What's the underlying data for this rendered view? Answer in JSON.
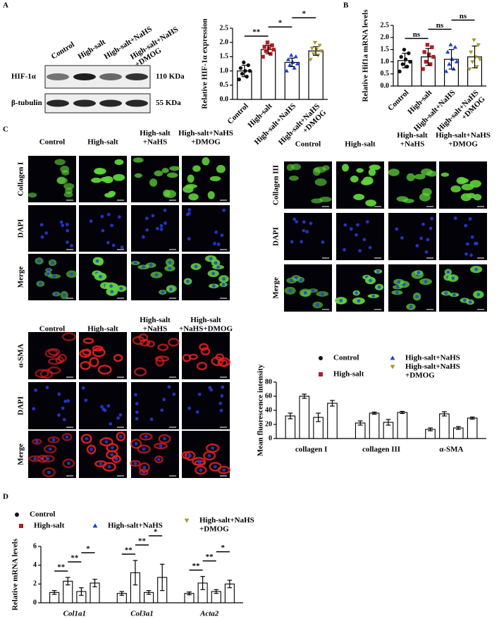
{
  "panel_labels": [
    "A",
    "B",
    "C",
    "D"
  ],
  "western_blot": {
    "lanes": [
      "Control",
      "High-salt",
      "High-salt+NaHS",
      "High-salt+NaHS\n+DMOG"
    ],
    "rows": [
      {
        "protein": "HIF-1α",
        "size": "110 KDa"
      },
      {
        "protein": "β-tubulin",
        "size": "55 KDa"
      }
    ]
  },
  "micrographs": [
    {
      "columns": [
        "Control",
        "High-salt",
        "High-salt\n+NaHS",
        "High-salt+NaHS\n+DMOG"
      ],
      "rows": [
        "Collagen I",
        "DAPI",
        "Merge"
      ]
    },
    {
      "columns": [
        "Control",
        "High-salt",
        "High-salt\n+NaHS",
        "High-salt+NaHS\n+DMOG"
      ],
      "rows": [
        "Collagen III",
        "DAPI",
        "Merge"
      ]
    },
    {
      "columns": [
        "Control",
        "High-salt",
        "High-salt\n+NaHS",
        "High-salt\n+NaHS+DMOG"
      ],
      "rows": [
        "α-SMA",
        "DAPI",
        "Merge"
      ]
    }
  ],
  "chart_data": [
    {
      "type": "bar",
      "y_label": "Relative HIF-1α expression",
      "categories": [
        "Control",
        "High-salt",
        "High-salt+NaHS",
        "High-salt+NaHS\n+DMOG"
      ],
      "values": [
        1.0,
        1.75,
        1.3,
        1.7
      ],
      "errors": [
        0.2,
        0.15,
        0.15,
        0.15
      ],
      "colors": [
        "#111111",
        "#b01e23",
        "#1c3fd6",
        "#a39a2b"
      ],
      "markers": [
        "circle",
        "square",
        "triangle",
        "triangle-down"
      ],
      "points": [
        [
          0.7,
          0.8,
          0.9,
          1.0,
          1.0,
          1.1,
          1.2,
          1.3
        ],
        [
          1.5,
          1.6,
          1.7,
          1.75,
          1.8,
          1.85,
          1.9,
          2.0
        ],
        [
          1.0,
          1.1,
          1.2,
          1.25,
          1.3,
          1.4,
          1.5,
          1.55
        ],
        [
          1.4,
          1.55,
          1.6,
          1.7,
          1.75,
          1.8,
          1.9,
          2.0
        ]
      ],
      "ylim": [
        0,
        2.5
      ],
      "yticks": [
        {
          "value": 0,
          "label": "0.0"
        },
        0.5,
        {
          "value": 1,
          "label": "1.0"
        },
        1.5,
        {
          "value": 2,
          "label": "2.0"
        },
        2.5
      ],
      "annotations": [
        {
          "label": "**",
          "from": 0,
          "to": 1
        },
        {
          "label": "*",
          "from": 1,
          "to": 2
        },
        {
          "label": "*",
          "from": 2,
          "to": 3
        }
      ]
    },
    {
      "type": "bar",
      "y_label": "Relative Hif1a mRNA levels",
      "categories": [
        "Control",
        "High-salt",
        "High-salt+NaHS",
        "High-salt+NaHS\n+DMOG"
      ],
      "values": [
        1.05,
        1.2,
        1.1,
        1.2
      ],
      "errors": [
        0.3,
        0.35,
        0.4,
        0.45
      ],
      "colors": [
        "#111111",
        "#b01e23",
        "#1c3fd6",
        "#a39a2b"
      ],
      "markers": [
        "circle",
        "square",
        "triangle",
        "triangle-down"
      ],
      "points": [
        [
          0.6,
          0.8,
          0.9,
          1.0,
          1.1,
          1.2,
          1.35,
          1.5
        ],
        [
          0.7,
          0.9,
          1.0,
          1.2,
          1.3,
          1.4,
          1.6,
          1.7
        ],
        [
          0.6,
          0.7,
          0.9,
          1.0,
          1.1,
          1.4,
          1.6,
          1.7
        ],
        [
          0.7,
          0.8,
          1.0,
          1.1,
          1.2,
          1.4,
          1.7,
          1.9
        ]
      ],
      "ylim": [
        0,
        2.5
      ],
      "yticks": [
        {
          "value": 0,
          "label": "0.0"
        },
        0.5,
        {
          "value": 1,
          "label": "1.0"
        },
        1.5,
        {
          "value": 2,
          "label": "2.0"
        },
        2.5
      ],
      "annotations": [
        {
          "label": "ns",
          "from": 0,
          "to": 1
        },
        {
          "label": "ns",
          "from": 1,
          "to": 2
        },
        {
          "label": "ns",
          "from": 2,
          "to": 3
        }
      ]
    },
    {
      "type": "grouped_bar",
      "y_label": "Mean fluorescence intensity",
      "categories": [
        "collagen I",
        "collagen III",
        "α-SMA"
      ],
      "series": [
        {
          "name": "Control",
          "color": "#111111",
          "marker": "circle",
          "values": [
            32,
            22,
            13
          ],
          "errors": [
            4,
            3,
            2
          ]
        },
        {
          "name": "High-salt",
          "color": "#b01e23",
          "marker": "square",
          "values": [
            60,
            36,
            35
          ],
          "errors": [
            3,
            1.5,
            3
          ]
        },
        {
          "name": "High-salt+NaHS",
          "color": "#1c3fd6",
          "marker": "triangle",
          "values": [
            30,
            23,
            15
          ],
          "errors": [
            6,
            4,
            2
          ]
        },
        {
          "name": "High-salt+NaHS\n+DMOG",
          "color": "#a39a2b",
          "marker": "triangle-down",
          "values": [
            50,
            37,
            29
          ],
          "errors": [
            4,
            1.5,
            1.5
          ]
        }
      ],
      "ylim": [
        0,
        80
      ],
      "yticks": [
        0,
        20,
        40,
        60,
        80
      ]
    },
    {
      "type": "grouped_bar",
      "y_label": "Relative mRNA levels",
      "category_font_style": "italic",
      "categories": [
        "Col1a1",
        "Col3a1",
        "Acta2"
      ],
      "series": [
        {
          "name": "Control",
          "color": "#111111",
          "marker": "circle",
          "values": [
            1.1,
            1.0,
            1.0
          ],
          "errors": [
            0.2,
            0.2,
            0.15
          ]
        },
        {
          "name": "High-salt",
          "color": "#b01e23",
          "marker": "square",
          "values": [
            2.3,
            3.2,
            2.1
          ],
          "errors": [
            0.4,
            1.3,
            0.7
          ]
        },
        {
          "name": "High-salt+NaHS",
          "color": "#1c3fd6",
          "marker": "triangle",
          "values": [
            1.2,
            1.1,
            1.2
          ],
          "errors": [
            0.4,
            0.2,
            0.2
          ]
        },
        {
          "name": "High-salt+NaHS\n+DMOG",
          "color": "#a39a2b",
          "marker": "triangle-down",
          "values": [
            2.1,
            2.7,
            2.0
          ],
          "errors": [
            0.4,
            1.4,
            0.4
          ]
        }
      ],
      "ylim": [
        0,
        6
      ],
      "yticks": [
        0,
        2,
        4,
        6
      ],
      "annotations": [
        {
          "label": "**",
          "category": 0,
          "from": 0,
          "to": 1
        },
        {
          "label": "**",
          "category": 0,
          "from": 1,
          "to": 2
        },
        {
          "label": "*",
          "category": 0,
          "from": 2,
          "to": 3
        },
        {
          "label": "**",
          "category": 1,
          "from": 0,
          "to": 1
        },
        {
          "label": "**",
          "category": 1,
          "from": 1,
          "to": 2
        },
        {
          "label": "*",
          "category": 1,
          "from": 2,
          "to": 3
        },
        {
          "label": "**",
          "category": 2,
          "from": 0,
          "to": 1
        },
        {
          "label": "**",
          "category": 2,
          "from": 1,
          "to": 2
        },
        {
          "label": "*",
          "category": 2,
          "from": 2,
          "to": 3
        }
      ]
    }
  ]
}
